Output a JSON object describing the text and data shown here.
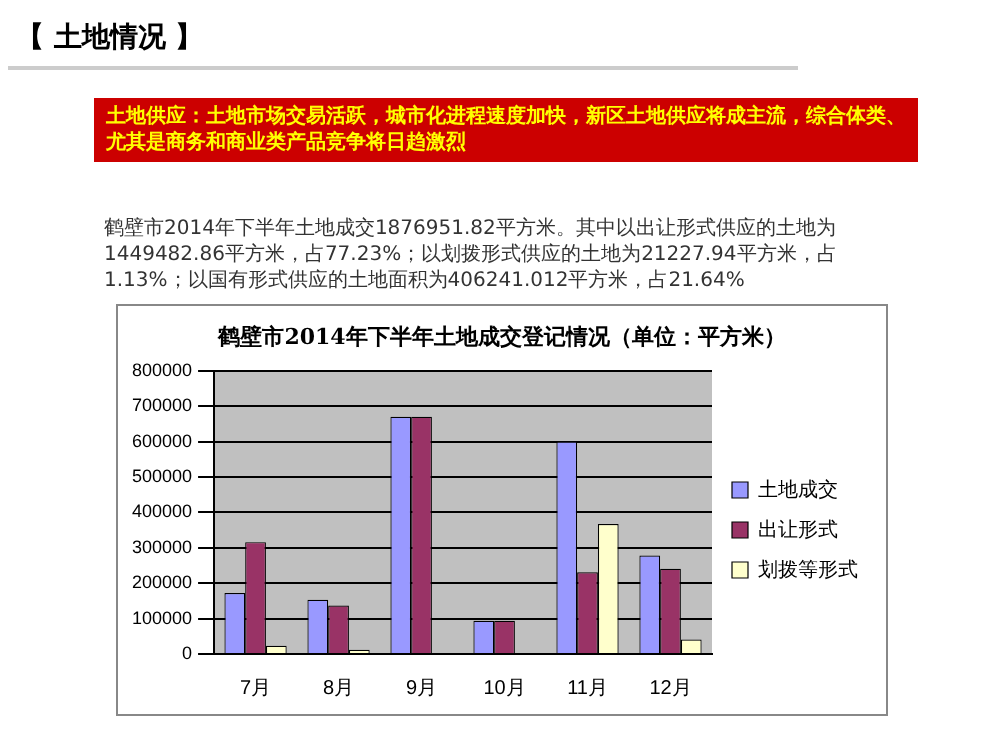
{
  "chart_data": {
    "type": "bar",
    "title": "鹤壁市2014年下半年土地成交登记情况（单位：平方米）",
    "annotations": [
      "【 土地情况 】",
      "土地供应：土地市场交易活跃，城市化进程速度加快，新区土地供应将成主流，综合体类、尤其是商务和商业类产品竞争将日趋激烈",
      "鹤壁市2014年下半年土地成交1876951.82平方米。其中以出让形式供应的土地为1449482.86平方米，占77.23%；以划拨形式供应的土地为21227.94平方米，占1.13%；以国有形式供应的土地面积为406241.012平方米，占21.64%"
    ],
    "categories": [
      "7月",
      "8月",
      "9月",
      "10月",
      "11月",
      "12月"
    ],
    "series": [
      {
        "name": "土地成交",
        "color": "#9999ff",
        "values": [
          172000,
          153000,
          670000,
          94000,
          600000,
          278000
        ]
      },
      {
        "name": "出让形式",
        "color": "#993366",
        "values": [
          316000,
          137000,
          670000,
          94000,
          231000,
          241000
        ]
      },
      {
        "name": "划拨等形式",
        "color": "#ffffcc",
        "values": [
          23000,
          12000,
          0,
          0,
          367000,
          41000
        ]
      }
    ],
    "ylim": [
      0,
      800000
    ],
    "yticks": [
      0,
      100000,
      200000,
      300000,
      400000,
      500000,
      600000,
      700000,
      800000
    ],
    "grid": "y",
    "legend": "right"
  }
}
